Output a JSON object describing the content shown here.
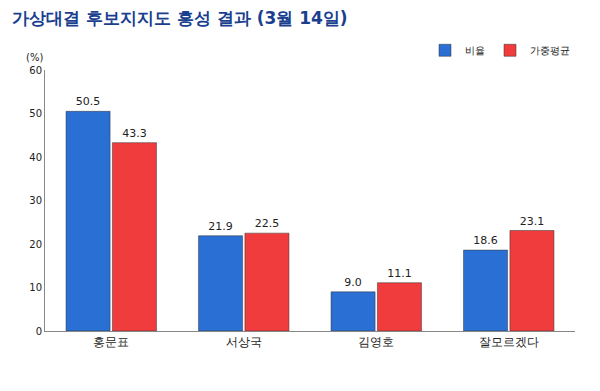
{
  "chart_data": {
    "type": "bar",
    "title": "가상대결 후보지지도 홍성 결과 (3월 14일)",
    "y_label": "(%)",
    "categories": [
      "홍문표",
      "서상국",
      "김영호",
      "잘모르겠다"
    ],
    "series": [
      {
        "name": "비율",
        "color": "#2a6fd4",
        "values": [
          50.5,
          21.9,
          9.0,
          18.6
        ],
        "value_labels": [
          "50.5",
          "21.9",
          "9.0",
          "18.6"
        ]
      },
      {
        "name": "가중평균",
        "color": "#f03c3c",
        "values": [
          43.3,
          22.5,
          11.1,
          23.1
        ]
      }
    ],
    "ylim": [
      0,
      60
    ],
    "yticks": [
      0,
      10,
      20,
      30,
      40,
      50,
      60
    ],
    "grid": false,
    "legend": "top right",
    "data_labels": true
  }
}
